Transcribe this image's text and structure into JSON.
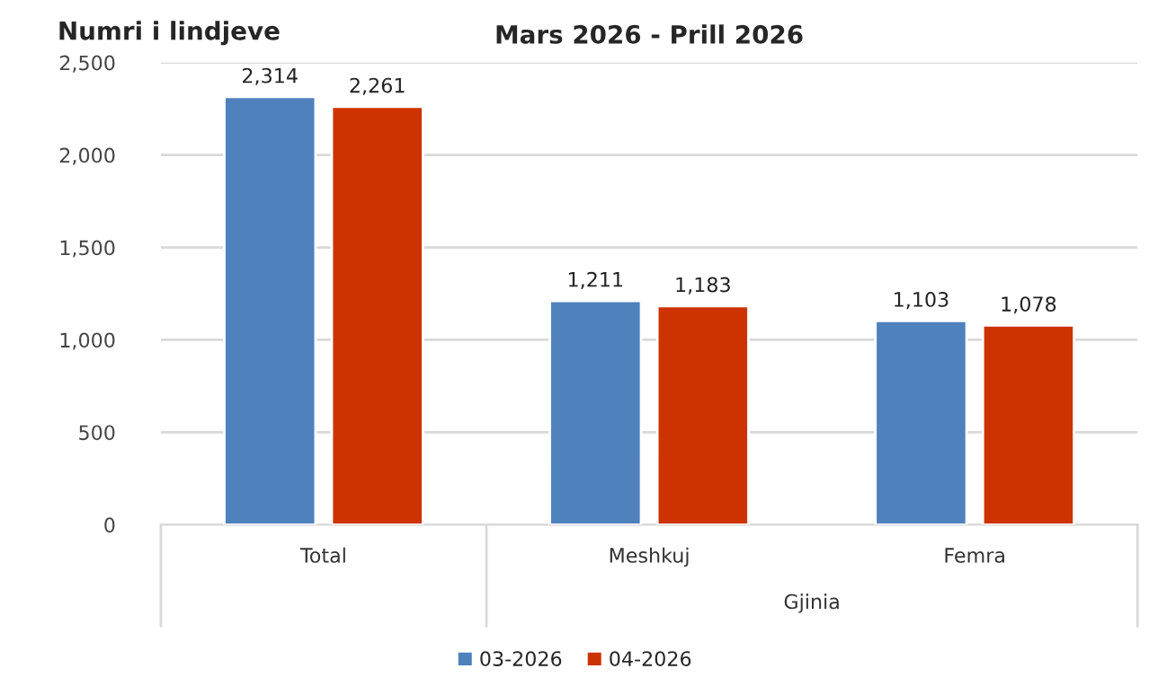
{
  "chart_data": {
    "type": "bar",
    "title": "Mars 2026 - Prill 2026",
    "ylabel": "Numri i lindjeve",
    "categories": [
      "Total",
      "Meshkuj",
      "Femra"
    ],
    "series": [
      {
        "name": "03-2026",
        "color": "#4f81bd",
        "values": [
          2314,
          1211,
          1103
        ],
        "value_labels": [
          "2,314",
          "1,211",
          "1,103"
        ]
      },
      {
        "name": "04-2026",
        "color": "#cc3300",
        "values": [
          2261,
          1183,
          1078
        ],
        "value_labels": [
          "2,261",
          "1,183",
          "1,078"
        ]
      }
    ],
    "annotations": [
      "Gjinia"
    ],
    "ylim": [
      0,
      2500
    ],
    "yticks": [
      0,
      500,
      {
        "value": 1000,
        "label": "1,000"
      },
      {
        "value": 1500,
        "label": "1,500"
      },
      {
        "value": 2000,
        "label": "2,000"
      },
      {
        "value": 2500,
        "label": "2,500"
      }
    ],
    "grid": "y",
    "legend": "bottom"
  }
}
